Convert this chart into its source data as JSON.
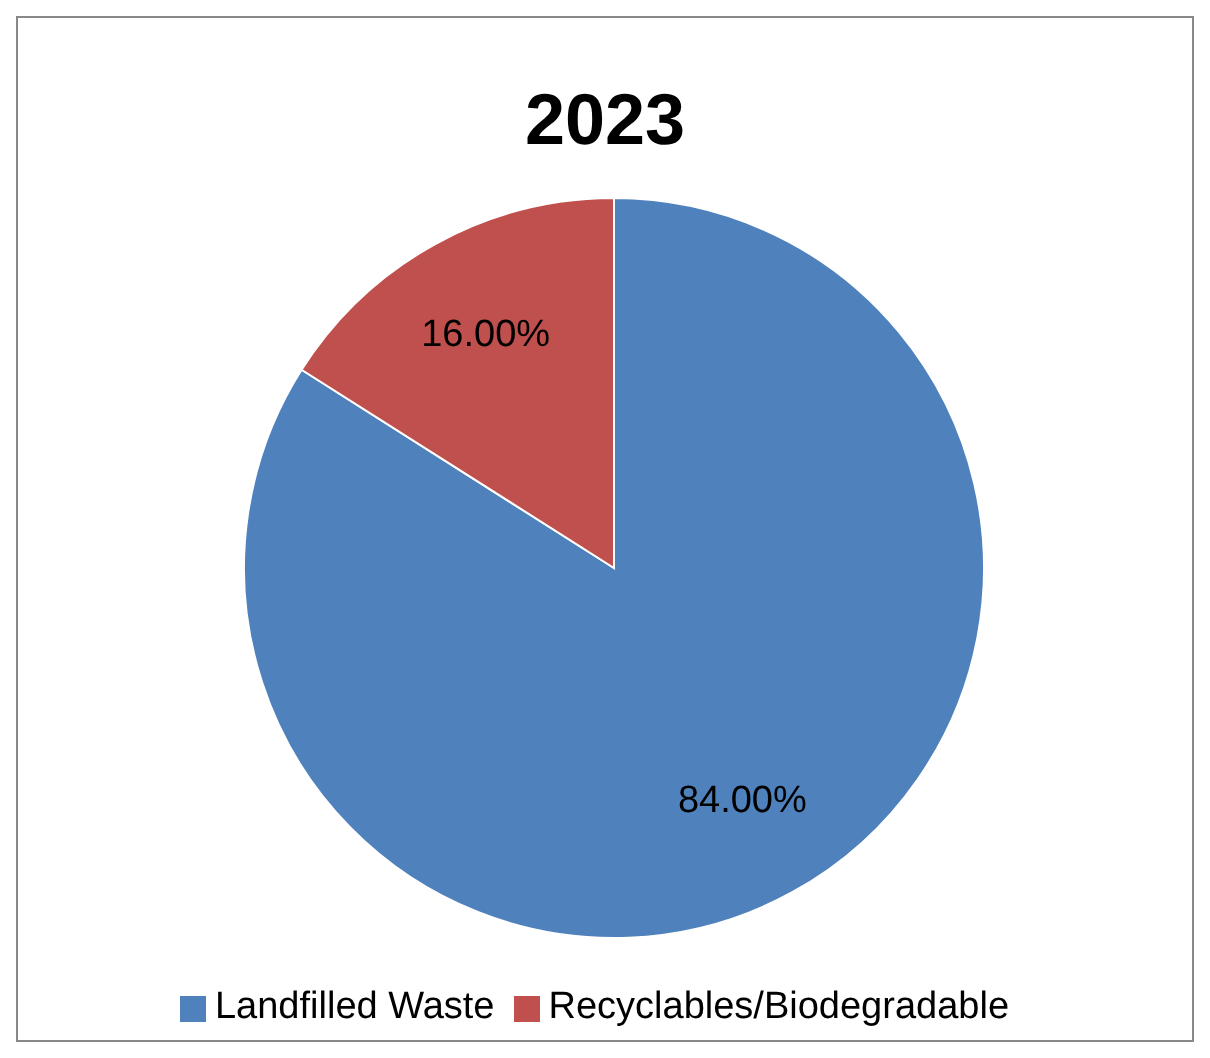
{
  "chart_data": {
    "type": "pie",
    "title": "2023",
    "categories": [
      "Landfilled Waste",
      "Recyclables/Biodegradable"
    ],
    "values": [
      84,
      16
    ],
    "colors": [
      "#4f81bd",
      "#c0504d"
    ],
    "value_labels": [
      "84.00%",
      "16.00%"
    ],
    "legend": "bottom"
  }
}
